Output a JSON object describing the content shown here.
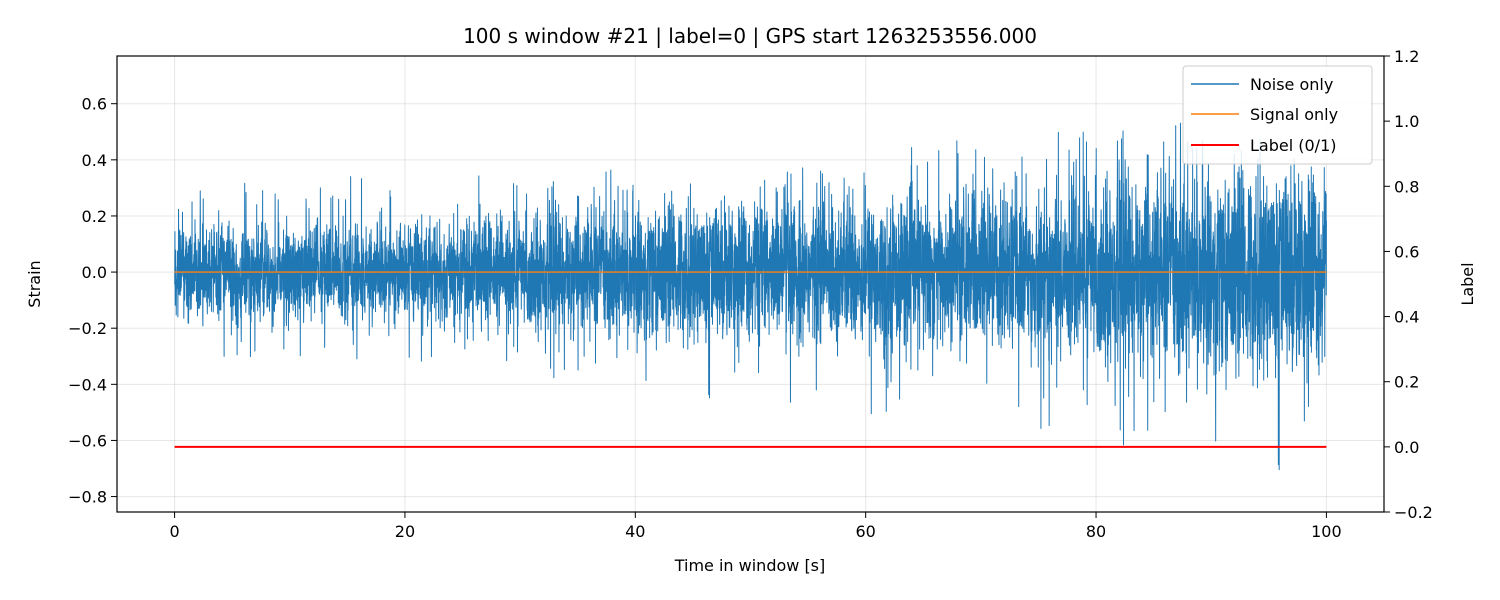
{
  "chart_data": {
    "type": "line",
    "title": "100 s window #21 | label=0 | GPS start 1263253556.000",
    "xlabel": "Time in window [s]",
    "ylabel": "Strain",
    "y2label": "Label",
    "xlim": [
      -5,
      105
    ],
    "ylim": [
      -0.855,
      0.77
    ],
    "y2lim": [
      -0.2,
      1.2
    ],
    "x_ticks": [
      "0",
      "20",
      "40",
      "60",
      "80",
      "100"
    ],
    "x_tick_values": [
      0,
      20,
      40,
      60,
      80,
      100
    ],
    "y_ticks": [
      "0.6",
      "0.4",
      "0.2",
      "0.0",
      "−0.2",
      "−0.4",
      "−0.6",
      "−0.8"
    ],
    "y_tick_values": [
      0.6,
      0.4,
      0.2,
      0.0,
      -0.2,
      -0.4,
      -0.6,
      -0.8
    ],
    "y2_ticks": [
      "1.2",
      "1.0",
      "0.8",
      "0.6",
      "0.4",
      "0.2",
      "0.0",
      "−0.2"
    ],
    "y2_tick_values": [
      1.2,
      1.0,
      0.8,
      0.6,
      0.4,
      0.2,
      0.0,
      -0.2
    ],
    "grid": true,
    "legend_position": "top-right",
    "series": [
      {
        "name": "Noise only",
        "color": "#1f77b4",
        "axis": "left",
        "x_range": [
          0,
          100
        ],
        "approx_envelope": {
          "t": [
            0,
            10,
            20,
            30,
            40,
            50,
            60,
            70,
            80,
            90,
            100
          ],
          "upper": [
            0.27,
            0.36,
            0.33,
            0.35,
            0.43,
            0.43,
            0.42,
            0.48,
            0.53,
            0.63,
            0.59
          ],
          "lower": [
            -0.29,
            -0.33,
            -0.32,
            -0.37,
            -0.42,
            -0.49,
            -0.55,
            -0.51,
            -0.62,
            -0.66,
            -0.78
          ]
        }
      },
      {
        "name": "Signal only",
        "color": "#ff7f0e",
        "axis": "left",
        "x": [
          0,
          100
        ],
        "y": [
          0.0,
          0.0
        ]
      },
      {
        "name": "Label (0/1)",
        "color": "#ff0000",
        "axis": "right",
        "x": [
          0,
          100
        ],
        "y": [
          0,
          0
        ]
      }
    ]
  }
}
